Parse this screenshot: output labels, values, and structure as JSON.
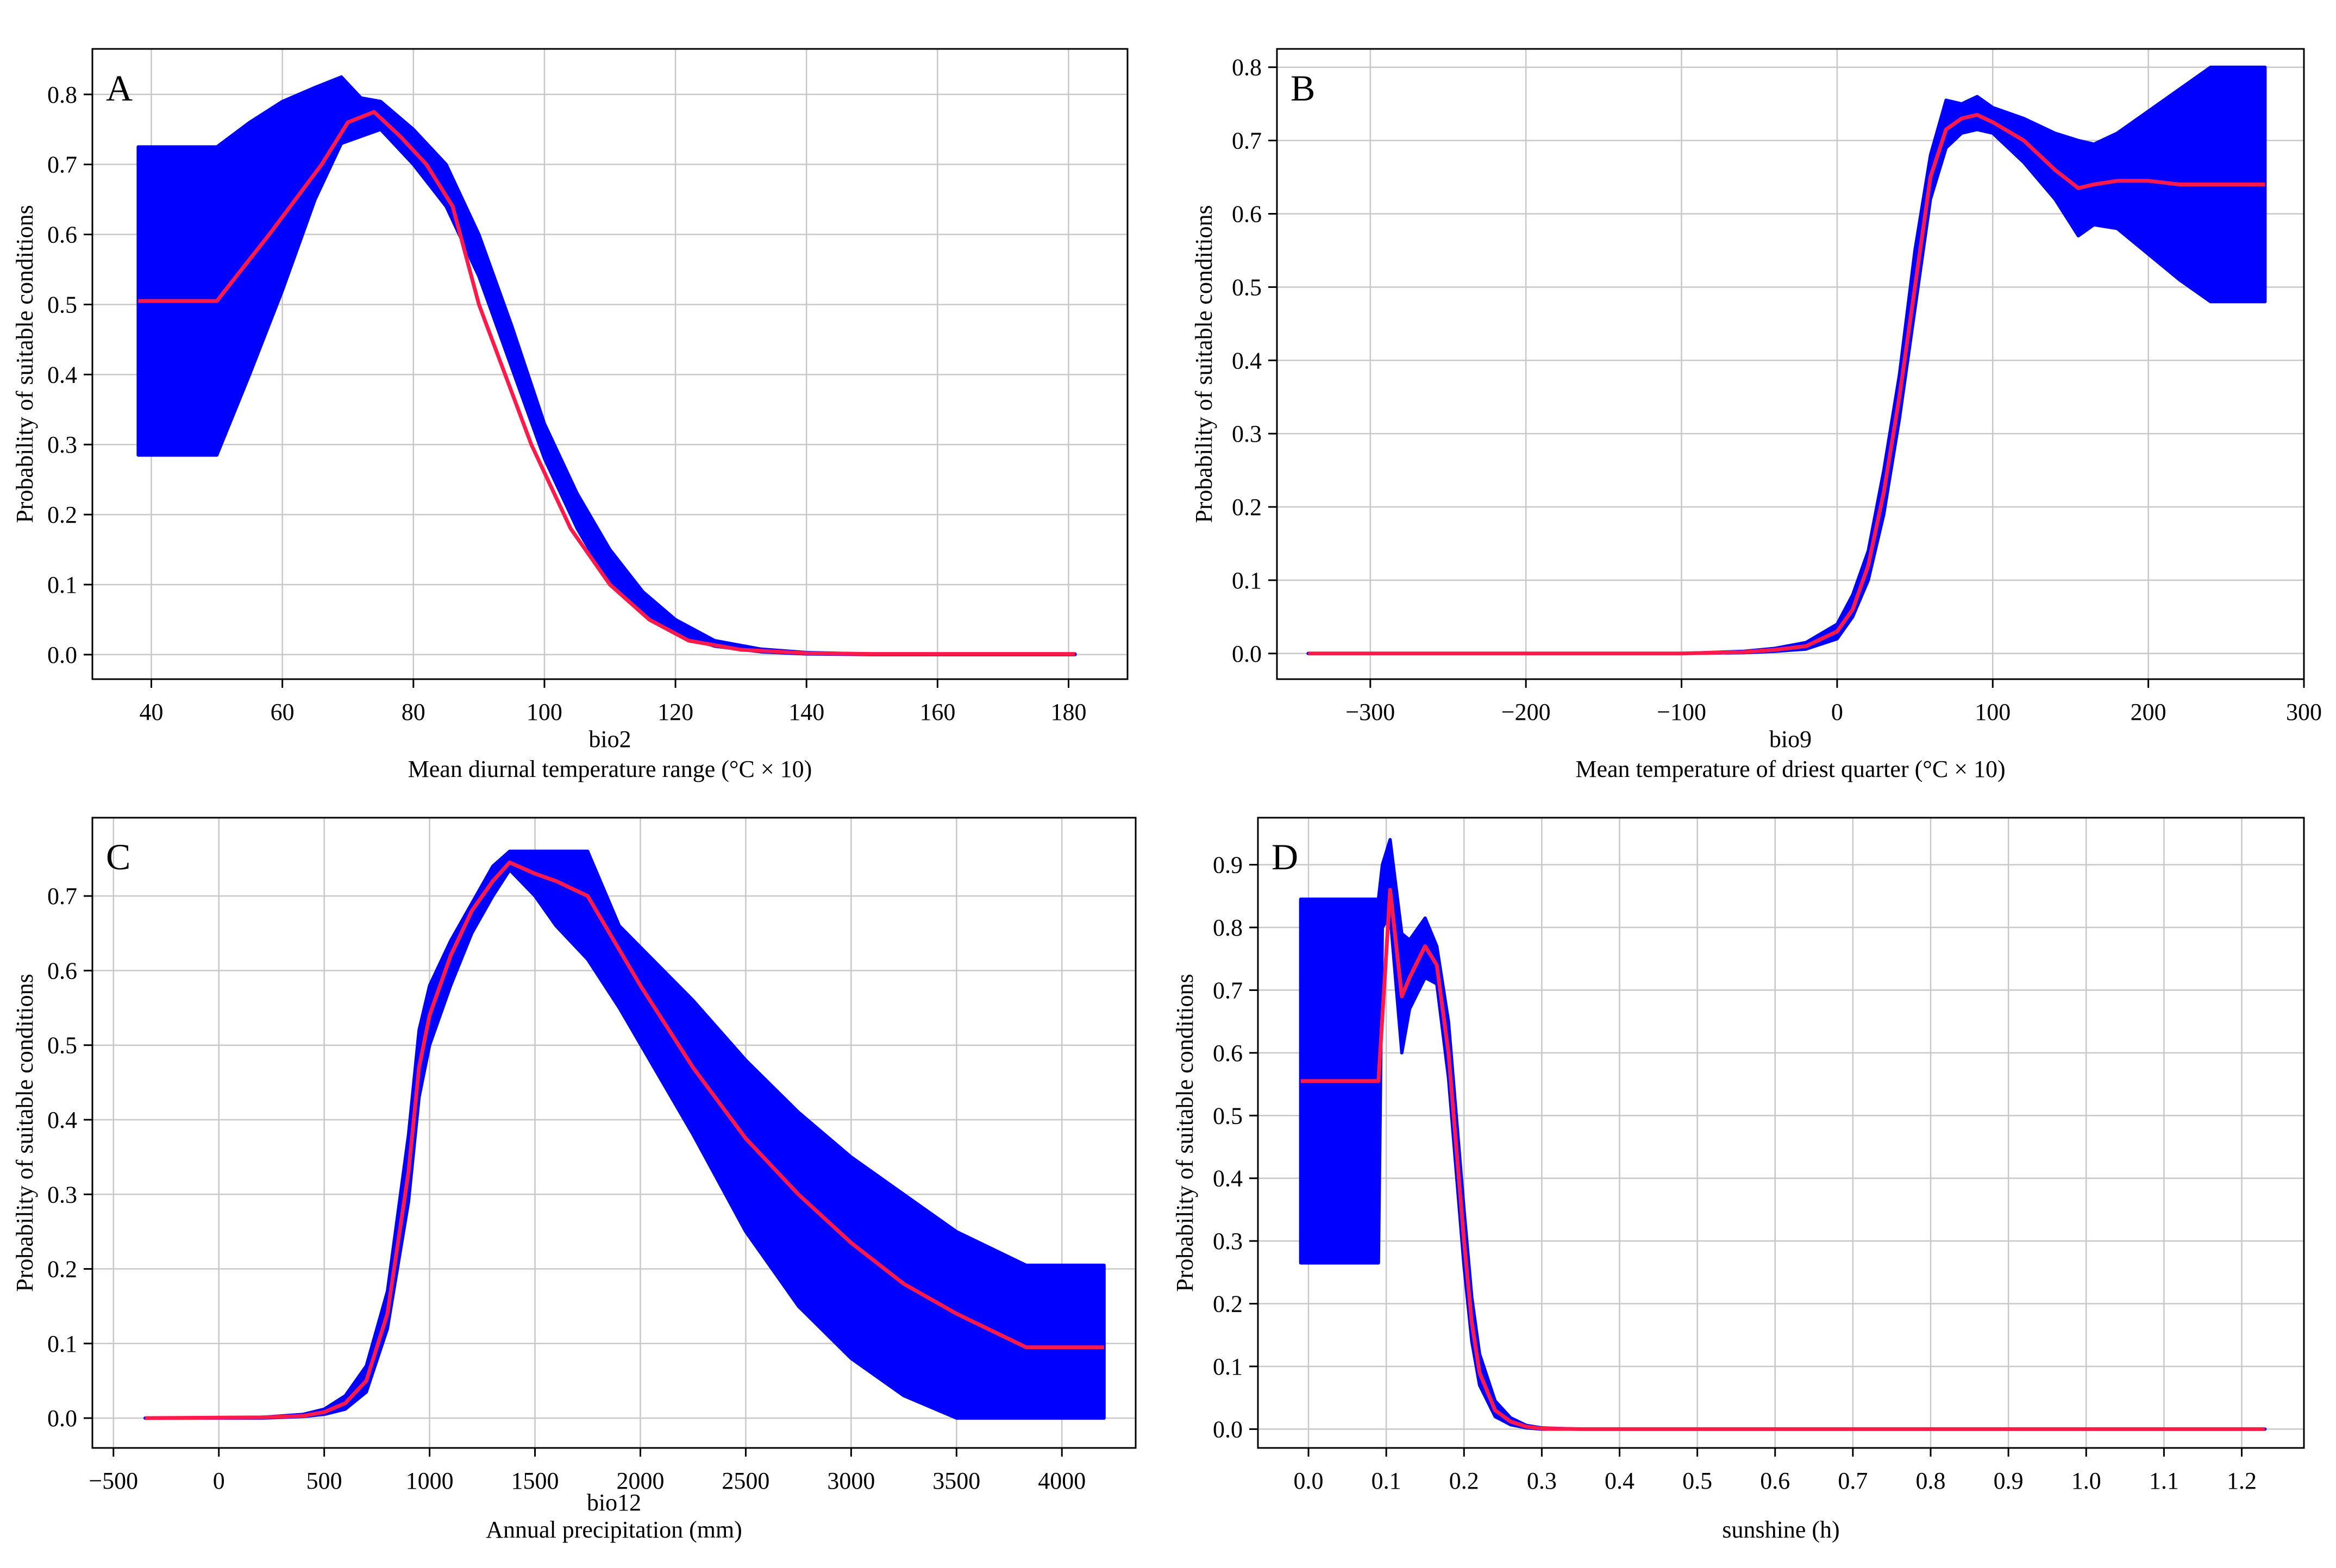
{
  "chart_data": [
    {
      "type": "line",
      "panel_label": "A",
      "xlabel": "bio2",
      "xlabel2": "Mean diurnal temperature range (°C × 10)",
      "ylabel": "Probability of suitable conditions",
      "xlim": [
        31,
        189
      ],
      "ylim": [
        -0.035,
        0.865
      ],
      "xticks": [
        40,
        60,
        80,
        100,
        120,
        140,
        160,
        180
      ],
      "xtick_labels": [
        "40",
        "60",
        "80",
        "100",
        "120",
        "140",
        "160",
        "180"
      ],
      "yticks": [
        0.0,
        0.1,
        0.2,
        0.3,
        0.4,
        0.5,
        0.6,
        0.7,
        0.8
      ],
      "ytick_labels": [
        "0.0",
        "0.1",
        "0.2",
        "0.3",
        "0.4",
        "0.5",
        "0.6",
        "0.7",
        "0.8"
      ],
      "grid": true,
      "colors": {
        "band": "#0000ff",
        "line": "#ff1a4b"
      },
      "mean": {
        "x": [
          38,
          50,
          58,
          66,
          70,
          74,
          78,
          82,
          86,
          90,
          94,
          98,
          104,
          110,
          116,
          122,
          130,
          140,
          150,
          160,
          170,
          181
        ],
        "y": [
          0.505,
          0.505,
          0.6,
          0.7,
          0.76,
          0.775,
          0.74,
          0.7,
          0.64,
          0.5,
          0.4,
          0.3,
          0.18,
          0.1,
          0.05,
          0.02,
          0.007,
          0.002,
          0.001,
          0.001,
          0.001,
          0.001
        ]
      },
      "band": {
        "x": [
          38,
          50,
          55,
          60,
          65,
          69,
          72,
          75,
          80,
          85,
          90,
          95,
          100,
          105,
          110,
          115,
          120,
          126,
          133,
          140,
          150,
          181
        ],
        "upper": [
          0.725,
          0.725,
          0.76,
          0.79,
          0.81,
          0.825,
          0.795,
          0.79,
          0.75,
          0.7,
          0.6,
          0.47,
          0.33,
          0.23,
          0.15,
          0.09,
          0.05,
          0.02,
          0.008,
          0.003,
          0.001,
          0.001
        ],
        "lower": [
          0.285,
          0.285,
          0.4,
          0.52,
          0.65,
          0.73,
          0.74,
          0.75,
          0.7,
          0.64,
          0.54,
          0.41,
          0.28,
          0.18,
          0.1,
          0.06,
          0.03,
          0.012,
          0.004,
          0.001,
          0.0,
          0.0
        ]
      }
    },
    {
      "type": "line",
      "panel_label": "B",
      "xlabel": "bio9",
      "xlabel2": "Mean temperature of driest quarter (°C × 10)",
      "ylabel": "Probability of suitable conditions",
      "xlim": [
        -360,
        300
      ],
      "ylim": [
        -0.035,
        0.825
      ],
      "xticks": [
        -300,
        -200,
        -100,
        0,
        100,
        200,
        300
      ],
      "xtick_labels": [
        "−300",
        "−200",
        "−100",
        "0",
        "100",
        "200",
        "300"
      ],
      "yticks": [
        0.0,
        0.1,
        0.2,
        0.3,
        0.4,
        0.5,
        0.6,
        0.7,
        0.8
      ],
      "ytick_labels": [
        "0.0",
        "0.1",
        "0.2",
        "0.3",
        "0.4",
        "0.5",
        "0.6",
        "0.7",
        "0.8"
      ],
      "grid": true,
      "colors": {
        "band": "#0000ff",
        "line": "#ff1a4b"
      },
      "mean": {
        "x": [
          -340,
          -100,
          -60,
          -40,
          -20,
          0,
          10,
          20,
          30,
          40,
          50,
          60,
          70,
          80,
          90,
          100,
          120,
          140,
          155,
          165,
          180,
          200,
          220,
          240,
          275
        ],
        "y": [
          0.0,
          0.0,
          0.002,
          0.005,
          0.01,
          0.03,
          0.06,
          0.12,
          0.22,
          0.35,
          0.5,
          0.65,
          0.715,
          0.73,
          0.735,
          0.725,
          0.7,
          0.66,
          0.635,
          0.64,
          0.645,
          0.645,
          0.64,
          0.64,
          0.64
        ]
      },
      "band": {
        "x": [
          -340,
          -100,
          -60,
          -40,
          -20,
          0,
          10,
          20,
          30,
          40,
          50,
          60,
          70,
          80,
          90,
          100,
          120,
          140,
          155,
          165,
          180,
          200,
          220,
          240,
          275
        ],
        "upper": [
          0.0,
          0.0,
          0.003,
          0.007,
          0.015,
          0.04,
          0.08,
          0.14,
          0.25,
          0.38,
          0.55,
          0.68,
          0.755,
          0.75,
          0.76,
          0.745,
          0.73,
          0.71,
          0.7,
          0.695,
          0.71,
          0.74,
          0.77,
          0.8,
          0.8
        ],
        "lower": [
          0.0,
          0.0,
          0.001,
          0.003,
          0.006,
          0.02,
          0.05,
          0.1,
          0.19,
          0.32,
          0.47,
          0.62,
          0.69,
          0.71,
          0.715,
          0.71,
          0.67,
          0.62,
          0.57,
          0.585,
          0.58,
          0.545,
          0.51,
          0.48,
          0.48
        ]
      }
    },
    {
      "type": "line",
      "panel_label": "C",
      "xlabel": "bio12",
      "xlabel2": "Annual precipitation (mm)",
      "ylabel": "Probability of suitable conditions",
      "xlim": [
        -600,
        4350
      ],
      "ylim": [
        -0.04,
        0.805
      ],
      "xticks": [
        -500,
        0,
        500,
        1000,
        1500,
        2000,
        2500,
        3000,
        3500,
        4000
      ],
      "xtick_labels": [
        "−500",
        "0",
        "500",
        "1000",
        "1500",
        "2000",
        "2500",
        "3000",
        "3500",
        "4000"
      ],
      "yticks": [
        0.0,
        0.1,
        0.2,
        0.3,
        0.4,
        0.5,
        0.6,
        0.7
      ],
      "ytick_labels": [
        "0.0",
        "0.1",
        "0.2",
        "0.3",
        "0.4",
        "0.5",
        "0.6",
        "0.7"
      ],
      "grid": true,
      "colors": {
        "band": "#0000ff",
        "line": "#ff1a4b"
      },
      "mean": {
        "x": [
          -350,
          200,
          400,
          500,
          600,
          700,
          800,
          900,
          950,
          1000,
          1100,
          1200,
          1300,
          1380,
          1500,
          1600,
          1750,
          2000,
          2250,
          2500,
          2750,
          3000,
          3250,
          3500,
          3830,
          4200
        ],
        "y": [
          0.0,
          0.001,
          0.003,
          0.008,
          0.02,
          0.05,
          0.14,
          0.33,
          0.47,
          0.54,
          0.62,
          0.68,
          0.72,
          0.745,
          0.73,
          0.72,
          0.7,
          0.58,
          0.47,
          0.375,
          0.3,
          0.235,
          0.18,
          0.14,
          0.095,
          0.095
        ]
      },
      "band": {
        "x": [
          -350,
          200,
          400,
          500,
          600,
          700,
          800,
          900,
          950,
          1000,
          1100,
          1200,
          1300,
          1380,
          1500,
          1600,
          1750,
          1900,
          2250,
          2500,
          2750,
          3000,
          3250,
          3500,
          3830,
          4200
        ],
        "upper": [
          0.0,
          0.001,
          0.005,
          0.012,
          0.03,
          0.07,
          0.17,
          0.38,
          0.52,
          0.58,
          0.64,
          0.69,
          0.74,
          0.76,
          0.76,
          0.76,
          0.76,
          0.66,
          0.56,
          0.48,
          0.41,
          0.35,
          0.3,
          0.25,
          0.205,
          0.205
        ],
        "lower": [
          0.0,
          0.0,
          0.002,
          0.005,
          0.012,
          0.035,
          0.12,
          0.29,
          0.43,
          0.5,
          0.58,
          0.65,
          0.7,
          0.735,
          0.7,
          0.66,
          0.615,
          0.55,
          0.38,
          0.25,
          0.15,
          0.08,
          0.03,
          0.0,
          0.0,
          0.0
        ]
      }
    },
    {
      "type": "line",
      "panel_label": "D",
      "xlabel": "sunshine (h)",
      "ylabel": "Probability of suitable conditions",
      "xlim": [
        -0.065,
        1.28
      ],
      "ylim": [
        -0.03,
        0.975
      ],
      "xticks": [
        0.0,
        0.1,
        0.2,
        0.3,
        0.4,
        0.5,
        0.6,
        0.7,
        0.8,
        0.9,
        1.0,
        1.1,
        1.2
      ],
      "xtick_labels": [
        "0.0",
        "0.1",
        "0.2",
        "0.3",
        "0.4",
        "0.5",
        "0.6",
        "0.7",
        "0.8",
        "0.9",
        "1.0",
        "1.1",
        "1.2"
      ],
      "yticks": [
        0.0,
        0.1,
        0.2,
        0.3,
        0.4,
        0.5,
        0.6,
        0.7,
        0.8,
        0.9
      ],
      "ytick_labels": [
        "0.0",
        "0.1",
        "0.2",
        "0.3",
        "0.4",
        "0.5",
        "0.6",
        "0.7",
        "0.8",
        "0.9"
      ],
      "grid": true,
      "colors": {
        "band": "#0000ff",
        "line": "#ff1a4b"
      },
      "mean": {
        "x": [
          -0.01,
          0.09,
          0.105,
          0.12,
          0.13,
          0.15,
          0.165,
          0.18,
          0.19,
          0.2,
          0.21,
          0.22,
          0.24,
          0.26,
          0.28,
          0.3,
          0.35,
          1.23
        ],
        "y": [
          0.555,
          0.555,
          0.86,
          0.69,
          0.72,
          0.77,
          0.74,
          0.6,
          0.45,
          0.3,
          0.17,
          0.09,
          0.03,
          0.012,
          0.004,
          0.001,
          0.0,
          0.0
        ]
      },
      "band": {
        "x": [
          -0.01,
          0.09,
          0.095,
          0.105,
          0.12,
          0.13,
          0.15,
          0.165,
          0.18,
          0.19,
          0.2,
          0.21,
          0.22,
          0.24,
          0.26,
          0.28,
          0.3,
          0.35,
          1.23
        ],
        "upper": [
          0.845,
          0.845,
          0.9,
          0.94,
          0.79,
          0.78,
          0.815,
          0.77,
          0.65,
          0.5,
          0.35,
          0.21,
          0.12,
          0.045,
          0.018,
          0.006,
          0.002,
          0.0,
          0.0
        ],
        "lower": [
          0.265,
          0.265,
          0.8,
          0.82,
          0.6,
          0.67,
          0.72,
          0.71,
          0.56,
          0.41,
          0.26,
          0.14,
          0.07,
          0.02,
          0.007,
          0.002,
          0.0,
          0.0,
          0.0
        ]
      }
    }
  ]
}
